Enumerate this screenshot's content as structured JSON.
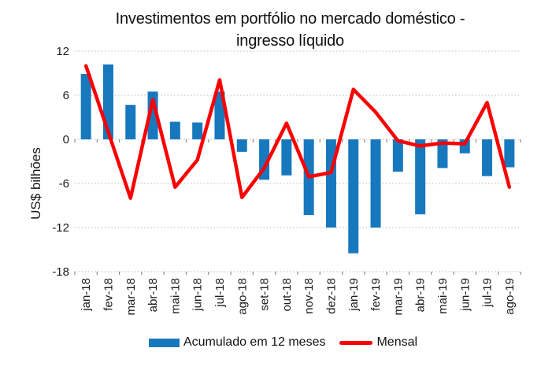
{
  "chart": {
    "title_line1": "Investimentos em portfólio no mercado doméstico -",
    "title_line2": "ingresso líquido",
    "y_axis_label": "US$ bilhões",
    "legend": {
      "bars_label": "Acumulado em 12 meses",
      "line_label": "Mensal"
    },
    "colors": {
      "bars": "#1878BE",
      "line": "#FB0000",
      "gridline": "#C9C9C9",
      "axis_tick": "#8C8C8C",
      "text": "#1A1A1A"
    }
  },
  "chart_data": {
    "type": "bar",
    "subtype": "bar-and-line-combo",
    "title": "Investimentos em portfólio no mercado doméstico - ingresso líquido",
    "xlabel": "",
    "ylabel": "US$ bilhões",
    "categories": [
      "jan-18",
      "fev-18",
      "mar-18",
      "abr-18",
      "mai-18",
      "jun-18",
      "jul-18",
      "ago-18",
      "set-18",
      "out-18",
      "nov-18",
      "dez-18",
      "jan-19",
      "fev-19",
      "mar-19",
      "abr-19",
      "mai-19",
      "jun-19",
      "jul-19",
      "ago-19"
    ],
    "series": [
      {
        "name": "Acumulado em 12 meses",
        "type": "bar",
        "color": "#1878BE",
        "values": [
          8.9,
          10.2,
          4.7,
          6.5,
          2.4,
          2.3,
          6.5,
          -1.7,
          -5.5,
          -4.9,
          -10.3,
          -12.0,
          -15.5,
          -12.0,
          -4.4,
          -10.2,
          -3.9,
          -1.9,
          -5.0,
          -3.8
        ]
      },
      {
        "name": "Mensal",
        "type": "line",
        "color": "#FB0000",
        "values": [
          10.0,
          1.0,
          -8.0,
          5.4,
          -6.5,
          -2.8,
          8.1,
          -7.9,
          -3.9,
          2.2,
          -5.1,
          -4.5,
          6.8,
          3.7,
          -0.2,
          -0.9,
          -0.5,
          -0.6,
          5.0,
          -6.5
        ]
      }
    ],
    "ylim": [
      -18,
      12
    ],
    "yticks": [
      12,
      6,
      0,
      -6,
      -12,
      -18
    ],
    "grid": "horizontal-dotted",
    "legend_position": "bottom"
  }
}
